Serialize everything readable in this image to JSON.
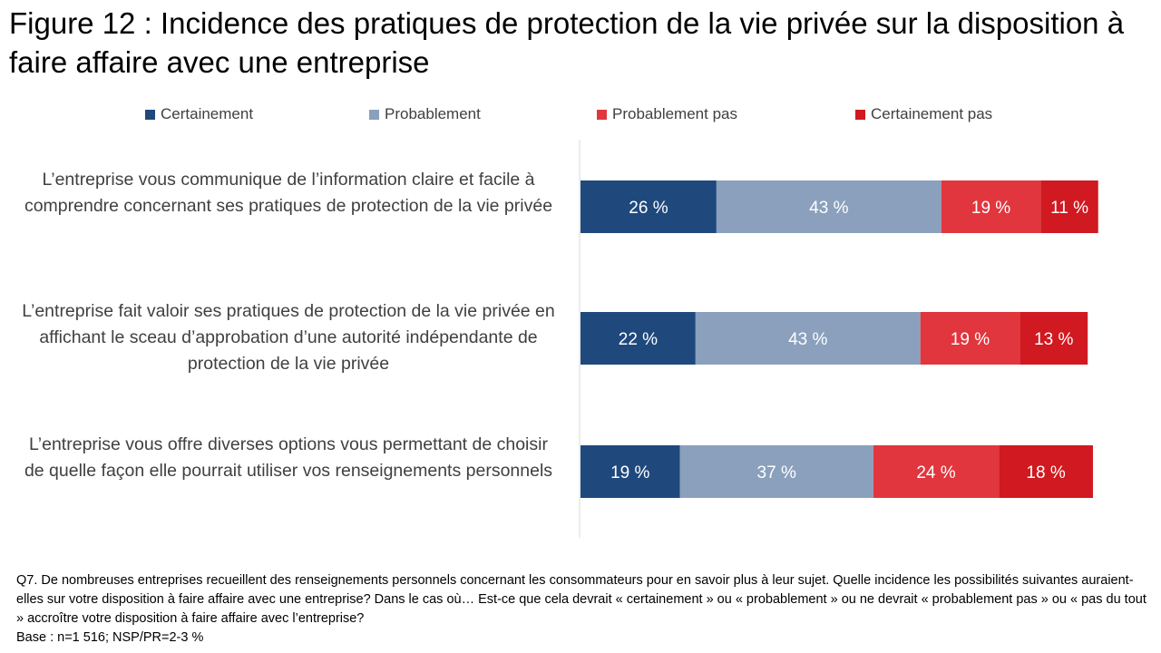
{
  "title": "Figure 12 : Incidence des pratiques de protection de la vie privée sur la disposition à faire affaire avec une entreprise",
  "chart_data": {
    "type": "bar",
    "orientation": "horizontal",
    "stacked": true,
    "categories": [
      "L’entreprise vous communique de l’information claire et facile à comprendre concernant ses pratiques de protection de la vie privée",
      "L’entreprise fait valoir ses pratiques de protection de la vie privée en affichant le sceau d’approbation d’une autorité indépendante de protection de la vie privée",
      "L’entreprise vous offre diverses options vous permettant de choisir de quelle façon elle pourrait utiliser vos renseignements personnels"
    ],
    "series": [
      {
        "name": "Certainement",
        "color": "#1f497d",
        "values": [
          26,
          22,
          19
        ],
        "labels": [
          "26 %",
          "22 %",
          "19 %"
        ]
      },
      {
        "name": "Probablement",
        "color": "#8aa0bd",
        "values": [
          43,
          43,
          37
        ],
        "labels": [
          "43 %",
          "43 %",
          "37 %"
        ]
      },
      {
        "name": "Probablement pas",
        "color": "#e1363d",
        "values": [
          19,
          19,
          24
        ],
        "labels": [
          "19 %",
          "19 %",
          "24 %"
        ]
      },
      {
        "name": "Certainement pas",
        "color": "#d01920",
        "values": [
          11,
          13,
          18
        ],
        "labels": [
          "11 %",
          "13 %",
          "18 %"
        ]
      }
    ],
    "xlim": [
      0,
      100
    ],
    "legend_position": "top",
    "grid": false,
    "xlabel": "",
    "ylabel": ""
  },
  "footnote": {
    "question": "Q7. De nombreuses entreprises recueillent des renseignements personnels concernant les consommateurs pour en savoir plus à leur sujet. Quelle incidence les possibilités suivantes auraient-elles sur votre disposition à faire affaire avec une entreprise? Dans le cas où… Est-ce que cela devrait « certainement » ou « probablement » ou ne devrait « probablement pas » ou « pas du tout » accroître votre disposition à faire affaire avec l’entreprise?",
    "base": "Base : n=1 516; NSP/PR=2-3 %"
  }
}
